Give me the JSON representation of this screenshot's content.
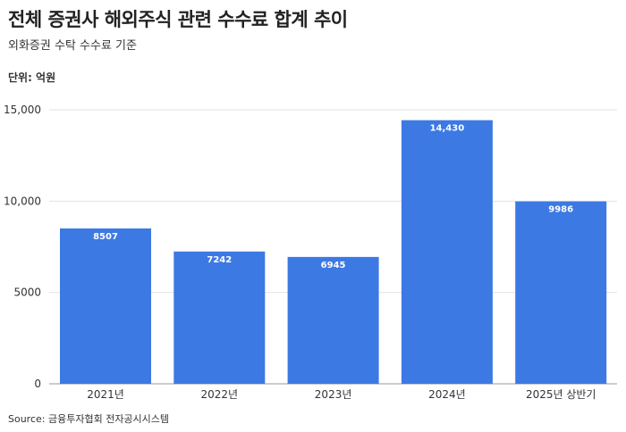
{
  "chart_data": {
    "type": "bar",
    "title": "전체 증권사 해외주식 관련 수수료 합계 추이",
    "subtitle": "외화증권 수탁 수수료 기준",
    "unit_label": "단위: 억원",
    "source": "Source: 금융투자협회 전자공시시스템",
    "categories": [
      "2021년",
      "2022년",
      "2023년",
      "2024년",
      "2025년 상반기"
    ],
    "values": [
      8507,
      7242,
      6945,
      14430,
      9986
    ],
    "value_labels": [
      "8507",
      "7242",
      "6945",
      "14,430",
      "9986"
    ],
    "ylim": [
      0,
      15000
    ],
    "yticks": [
      0,
      5000,
      10000,
      15000
    ],
    "ytick_labels": [
      "0",
      "5000",
      "10,000",
      "15,000"
    ],
    "grid": true,
    "bar_color": "#3d79e3"
  }
}
